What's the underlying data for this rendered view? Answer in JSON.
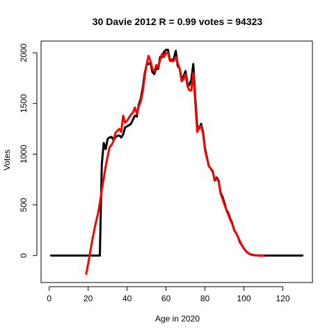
{
  "chart_data": {
    "type": "line",
    "title": "30 Davie 2012 R = 0.99 votes = 94323",
    "xlabel": "Age in 2020",
    "ylabel": "Votes",
    "xlim": [
      1,
      130
    ],
    "ylim": [
      -180,
      2030
    ],
    "x_ticks": [
      0,
      20,
      40,
      60,
      80,
      100,
      120
    ],
    "y_ticks": [
      0,
      500,
      1000,
      1500,
      2000
    ],
    "x_tick_labels": [
      "0",
      "20",
      "40",
      "60",
      "80",
      "100",
      "120"
    ],
    "y_tick_labels": [
      "0",
      "500",
      "1000",
      "1500",
      "2000"
    ],
    "grid": false,
    "series": [
      {
        "color": "#000000",
        "points": [
          [
            1,
            0
          ],
          [
            26,
            0
          ],
          [
            27,
            900
          ],
          [
            28,
            1110
          ],
          [
            29,
            1050
          ],
          [
            30,
            1150
          ],
          [
            31,
            1165
          ],
          [
            32,
            1170
          ],
          [
            33,
            1140
          ],
          [
            34,
            1165
          ],
          [
            35,
            1180
          ],
          [
            36,
            1185
          ],
          [
            37,
            1165
          ],
          [
            38,
            1195
          ],
          [
            39,
            1265
          ],
          [
            40,
            1275
          ],
          [
            41,
            1285
          ],
          [
            42,
            1300
          ],
          [
            43,
            1340
          ],
          [
            44,
            1380
          ],
          [
            45,
            1370
          ],
          [
            46,
            1490
          ],
          [
            47,
            1545
          ],
          [
            48,
            1650
          ],
          [
            49,
            1790
          ],
          [
            50,
            1880
          ],
          [
            51,
            1890
          ],
          [
            52,
            1900
          ],
          [
            53,
            1810
          ],
          [
            54,
            1790
          ],
          [
            55,
            1850
          ],
          [
            56,
            1840
          ],
          [
            57,
            1960
          ],
          [
            58,
            1955
          ],
          [
            59,
            2010
          ],
          [
            60,
            2030
          ],
          [
            61,
            2030
          ],
          [
            62,
            1930
          ],
          [
            63,
            1930
          ],
          [
            64,
            1940
          ],
          [
            65,
            2020
          ],
          [
            66,
            1870
          ],
          [
            67,
            1845
          ],
          [
            68,
            1740
          ],
          [
            69,
            1770
          ],
          [
            70,
            1820
          ],
          [
            71,
            1700
          ],
          [
            72,
            1680
          ],
          [
            73,
            1740
          ],
          [
            74,
            1890
          ],
          [
            75,
            1560
          ],
          [
            76,
            1280
          ],
          [
            77,
            1250
          ],
          [
            78,
            1300
          ],
          [
            79,
            1220
          ],
          [
            80,
            1060
          ],
          [
            81,
            970
          ],
          [
            82,
            880
          ],
          [
            83,
            860
          ],
          [
            84,
            830
          ],
          [
            85,
            740
          ],
          [
            86,
            770
          ],
          [
            87,
            740
          ],
          [
            88,
            620
          ],
          [
            89,
            580
          ],
          [
            90,
            520
          ],
          [
            91,
            450
          ],
          [
            92,
            420
          ],
          [
            93,
            360
          ],
          [
            94,
            320
          ],
          [
            95,
            250
          ],
          [
            96,
            220
          ],
          [
            97,
            180
          ],
          [
            98,
            130
          ],
          [
            99,
            100
          ],
          [
            100,
            70
          ],
          [
            101,
            45
          ],
          [
            102,
            25
          ],
          [
            103,
            15
          ],
          [
            104,
            8
          ],
          [
            105,
            4
          ],
          [
            106,
            2
          ],
          [
            107,
            1
          ],
          [
            108,
            0
          ],
          [
            130,
            0
          ]
        ]
      },
      {
        "color": "#ff0000",
        "points": [
          [
            19,
            -180
          ],
          [
            20,
            -80
          ],
          [
            21,
            30
          ],
          [
            22,
            140
          ],
          [
            23,
            240
          ],
          [
            24,
            330
          ],
          [
            25,
            410
          ],
          [
            26,
            520
          ],
          [
            27,
            650
          ],
          [
            28,
            760
          ],
          [
            29,
            880
          ],
          [
            30,
            980
          ],
          [
            31,
            1070
          ],
          [
            32,
            1090
          ],
          [
            33,
            1130
          ],
          [
            34,
            1210
          ],
          [
            35,
            1230
          ],
          [
            36,
            1250
          ],
          [
            37,
            1220
          ],
          [
            38,
            1380
          ],
          [
            39,
            1310
          ],
          [
            40,
            1330
          ],
          [
            41,
            1360
          ],
          [
            42,
            1390
          ],
          [
            43,
            1410
          ],
          [
            44,
            1460
          ],
          [
            45,
            1400
          ],
          [
            46,
            1470
          ],
          [
            47,
            1520
          ],
          [
            48,
            1610
          ],
          [
            49,
            1760
          ],
          [
            50,
            1880
          ],
          [
            51,
            1970
          ],
          [
            52,
            1920
          ],
          [
            53,
            1840
          ],
          [
            54,
            1820
          ],
          [
            55,
            1880
          ],
          [
            56,
            1860
          ],
          [
            57,
            1930
          ],
          [
            58,
            1990
          ],
          [
            59,
            1960
          ],
          [
            60,
            2000
          ],
          [
            61,
            2000
          ],
          [
            62,
            1920
          ],
          [
            63,
            1920
          ],
          [
            64,
            1920
          ],
          [
            65,
            1960
          ],
          [
            66,
            1900
          ],
          [
            67,
            1840
          ],
          [
            68,
            1720
          ],
          [
            69,
            1740
          ],
          [
            70,
            1790
          ],
          [
            71,
            1670
          ],
          [
            72,
            1630
          ],
          [
            73,
            1630
          ],
          [
            74,
            1800
          ],
          [
            75,
            1510
          ],
          [
            76,
            1220
          ],
          [
            77,
            1260
          ],
          [
            78,
            1280
          ],
          [
            79,
            1200
          ],
          [
            80,
            1040
          ],
          [
            81,
            960
          ],
          [
            82,
            880
          ],
          [
            83,
            860
          ],
          [
            84,
            820
          ],
          [
            85,
            750
          ],
          [
            86,
            760
          ],
          [
            87,
            730
          ],
          [
            88,
            610
          ],
          [
            89,
            560
          ],
          [
            90,
            500
          ],
          [
            91,
            450
          ],
          [
            92,
            400
          ],
          [
            93,
            350
          ],
          [
            94,
            310
          ],
          [
            95,
            250
          ],
          [
            96,
            220
          ],
          [
            97,
            180
          ],
          [
            98,
            140
          ],
          [
            99,
            100
          ],
          [
            100,
            70
          ],
          [
            101,
            45
          ],
          [
            102,
            28
          ],
          [
            103,
            16
          ],
          [
            104,
            10
          ],
          [
            105,
            6
          ],
          [
            106,
            3
          ],
          [
            107,
            2
          ],
          [
            108,
            1
          ],
          [
            109,
            0
          ],
          [
            110,
            0
          ]
        ]
      }
    ]
  }
}
